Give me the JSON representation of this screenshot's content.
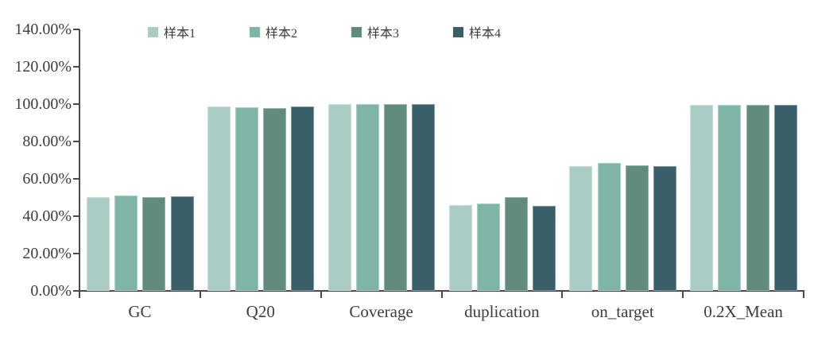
{
  "chart_data": {
    "type": "bar",
    "title": "",
    "xlabel": "",
    "ylabel": "",
    "categories": [
      "GC",
      "Q20",
      "Coverage",
      "duplication",
      "on_target",
      "0.2X_Mean"
    ],
    "series": [
      {
        "name": "样本1",
        "color": "#a9cdc5",
        "values": [
          50.2,
          98.8,
          100.0,
          46.0,
          66.6,
          99.5
        ]
      },
      {
        "name": "样本2",
        "color": "#7fb5a6",
        "values": [
          50.9,
          98.3,
          100.0,
          46.8,
          68.6,
          99.6
        ]
      },
      {
        "name": "样本3",
        "color": "#618b7d",
        "values": [
          50.3,
          97.9,
          100.0,
          50.4,
          67.2,
          99.5
        ]
      },
      {
        "name": "样本4",
        "color": "#3a5f69",
        "values": [
          50.6,
          98.7,
          100.0,
          45.4,
          66.7,
          99.6
        ]
      }
    ],
    "ylim": [
      0,
      140
    ],
    "y_tick_step": 20,
    "y_tick_labels": [
      "0.00%",
      "20.00%",
      "40.00%",
      "60.00%",
      "80.00%",
      "100.00%",
      "120.00%",
      "140.00%"
    ],
    "grid": false,
    "legend_position": "top"
  },
  "colors": {
    "axis": "#4a4a4a",
    "text": "#3d3d3d",
    "background": "#ffffff"
  }
}
